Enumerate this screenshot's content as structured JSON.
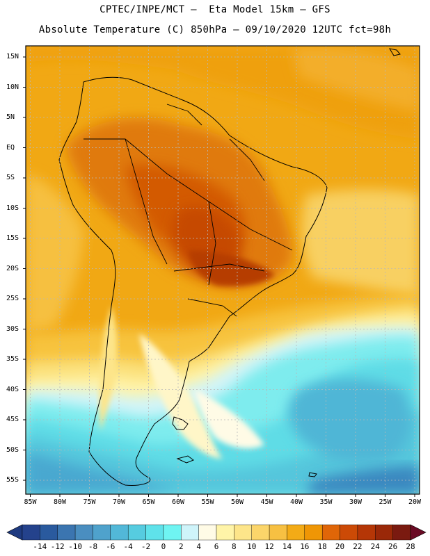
{
  "header": {
    "line1": "CPTEC/INPE/MCT –  Eta Model 15km – GFS",
    "line2": "Absolute Temperature (C) 850hPa – 09/10/2020 12UTC fct=98h"
  },
  "map": {
    "lat_labels": [
      "15N",
      "10N",
      "5N",
      "EQ",
      "5S",
      "10S",
      "15S",
      "20S",
      "25S",
      "30S",
      "35S",
      "40S",
      "45S",
      "50S",
      "55S"
    ],
    "lon_labels": [
      "85W",
      "80W",
      "75W",
      "70W",
      "65W",
      "60W",
      "55W",
      "50W",
      "45W",
      "40W",
      "35W",
      "30W",
      "25W",
      "20W"
    ]
  },
  "colorbar": {
    "labels": [
      "-14",
      "-12",
      "-10",
      "-8",
      "-6",
      "-4",
      "-2",
      "0",
      "2",
      "4",
      "6",
      "8",
      "10",
      "12",
      "14",
      "16",
      "18",
      "20",
      "22",
      "24",
      "26",
      "28"
    ],
    "colors": [
      "#24428c",
      "#2a5a9e",
      "#3b75b0",
      "#4a8ec0",
      "#4fa2cc",
      "#52b8d8",
      "#56cce0",
      "#5fe2ea",
      "#6ff4f2",
      "#cff4fa",
      "#fffbe6",
      "#fff4a8",
      "#fde58a",
      "#fbd56a",
      "#f7c042",
      "#f3ab16",
      "#ef9605",
      "#e06608",
      "#cc4a06",
      "#b53606",
      "#9a2808",
      "#7a1a10"
    ],
    "under_color": "#1e3a80",
    "over_color": "#6a0a24"
  }
}
